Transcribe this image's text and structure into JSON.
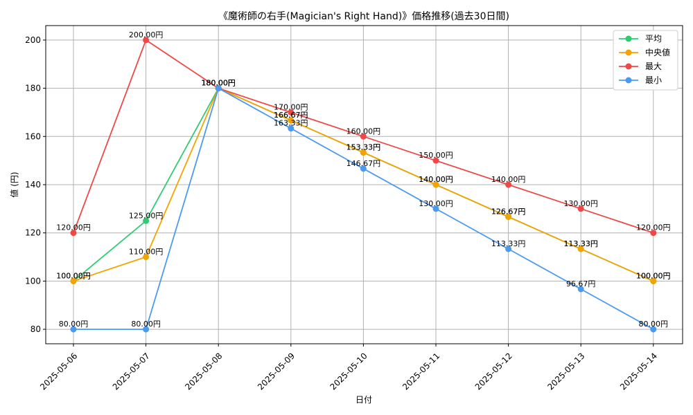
{
  "chart_data": {
    "type": "line",
    "title": "《魔術師の右手(Magician's Right Hand)》価格推移(過去30日間)",
    "xlabel": "日付",
    "ylabel": "値 (円)",
    "ylim": [
      74,
      206
    ],
    "yticks": [
      80,
      100,
      120,
      140,
      160,
      180,
      200
    ],
    "grid": true,
    "legend_position": "top-right",
    "value_suffix": "円",
    "categories": [
      "2025-05-06",
      "2025-05-07",
      "2025-05-08",
      "2025-05-09",
      "2025-05-10",
      "2025-05-11",
      "2025-05-12",
      "2025-05-13",
      "2025-05-14"
    ],
    "series": [
      {
        "name": "平均",
        "color": "#2ecc71",
        "values": [
          100.0,
          125.0,
          180.0,
          166.67,
          153.33,
          140.0,
          126.67,
          113.33,
          100.0
        ]
      },
      {
        "name": "中央値",
        "color": "#f5a300",
        "values": [
          100.0,
          110.0,
          180.0,
          166.67,
          153.33,
          140.0,
          126.67,
          113.33,
          100.0
        ]
      },
      {
        "name": "最大",
        "color": "#f04747",
        "values": [
          120.0,
          200.0,
          180.0,
          170.0,
          160.0,
          150.0,
          140.0,
          130.0,
          120.0
        ]
      },
      {
        "name": "最小",
        "color": "#4a9af0",
        "values": [
          80.0,
          80.0,
          180.0,
          163.33,
          146.67,
          130.0,
          113.33,
          96.67,
          80.0
        ]
      }
    ]
  }
}
